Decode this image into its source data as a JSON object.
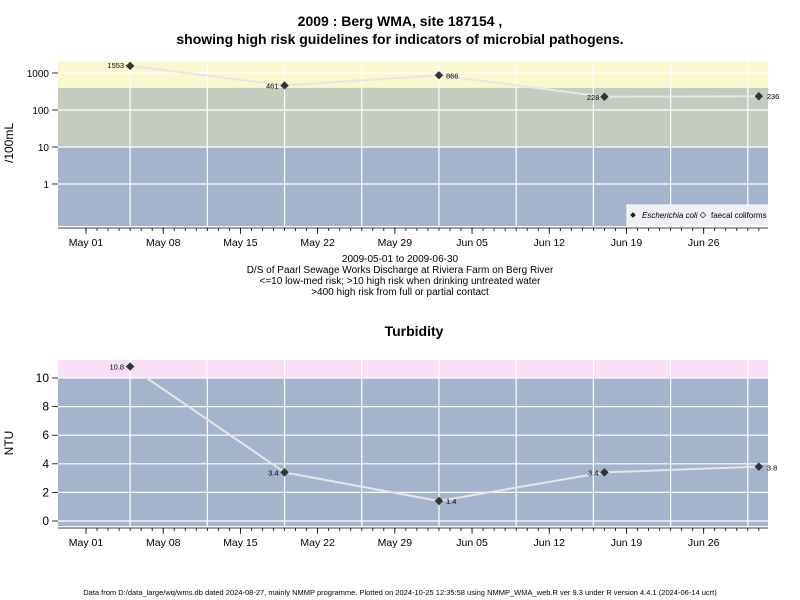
{
  "header": {
    "title_line1": "2009 : Berg WMA, site 187154 ,",
    "title_line2": "showing high risk guidelines for indicators of microbial pathogens."
  },
  "notes": {
    "date_range": "2009-05-01 to 2009-06-30",
    "location": "D/S of Paarl Sewage Works Discharge at Riviera Farm on Berg River",
    "risk_line1": "<=10 low-med risk; >10 high risk when drinking untreated water",
    "risk_line2": ">400 high risk from full or partial contact"
  },
  "footer": {
    "text": "Data from D:/data_large/wq/wms.db dated 2024-08-27, mainly NMMP programme. Plotted on 2024-10-25 12:35:58 using NMMP_WMA_web.R ver 9.3 under R version 4.4.1 (2024-06-14 ucrt)"
  },
  "colors": {
    "blue_band": "#a3b4cc",
    "green_band": "#c4ccc0",
    "yellow_band": "#fbf7cf",
    "pink_band": "#f8dff7",
    "line": "#e6e6e6",
    "marker": "#333333"
  },
  "chart_data": [
    {
      "type": "line",
      "title": "2009 : Berg WMA, site 187154 , showing high risk guidelines for indicators of microbial pathogens.",
      "xlabel": "",
      "ylabel": "/100mL",
      "yscale": "log",
      "x_ticks": [
        "May 01",
        "May 08",
        "May 15",
        "May 22",
        "May 29",
        "Jun 05",
        "Jun 12",
        "Jun 19",
        "Jun 26"
      ],
      "y_ticks": [
        "1",
        "10",
        "100",
        "1000"
      ],
      "bands": [
        {
          "from": 0,
          "to": 10,
          "color": "#a3b4cc"
        },
        {
          "from": 10,
          "to": 400,
          "color": "#c4ccc0"
        },
        {
          "from": 400,
          "to": 2100,
          "color": "#fbf7cf"
        }
      ],
      "legend": {
        "position": "bottom-right",
        "entries": [
          "Escherichia coli",
          "faecal coliforms"
        ]
      },
      "series": [
        {
          "name": "Escherichia coli",
          "x": [
            "2009-05-05",
            "2009-05-19",
            "2009-06-02",
            "2009-06-17",
            "2009-07-01"
          ],
          "values": [
            1553,
            461,
            866,
            228,
            236
          ],
          "labels": [
            "1553",
            "461",
            "866",
            "228",
            "236"
          ]
        }
      ],
      "grid": true
    },
    {
      "type": "line",
      "title": "Turbidity",
      "xlabel": "",
      "ylabel": "NTU",
      "ylim": [
        -0.4,
        11.3
      ],
      "x_ticks": [
        "May 01",
        "May 08",
        "May 15",
        "May 22",
        "May 29",
        "Jun 05",
        "Jun 12",
        "Jun 19",
        "Jun 26"
      ],
      "y_ticks": [
        "0",
        "2",
        "4",
        "6",
        "8",
        "10"
      ],
      "bands": [
        {
          "from": -0.4,
          "to": 10,
          "color": "#a3b4cc"
        },
        {
          "from": 10,
          "to": 11.3,
          "color": "#f8dff7"
        }
      ],
      "series": [
        {
          "name": "Turbidity",
          "x": [
            "2009-05-05",
            "2009-05-19",
            "2009-06-02",
            "2009-06-17",
            "2009-07-01"
          ],
          "values": [
            10.8,
            3.4,
            1.4,
            3.4,
            3.8
          ],
          "labels": [
            "10.8",
            "3.4",
            "1.4",
            "3.4",
            "3.8"
          ]
        }
      ],
      "grid": true
    }
  ]
}
